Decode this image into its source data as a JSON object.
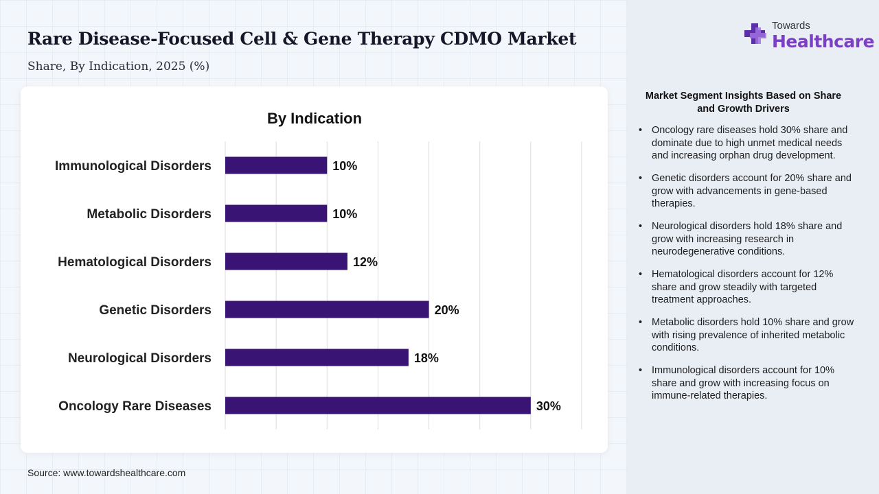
{
  "header": {
    "title": "Rare Disease-Focused Cell & Gene Therapy CDMO Market",
    "subtitle": "Share, By Indication, 2025 (%)"
  },
  "source": "Source: www.towardshealthcare.com",
  "logo": {
    "small": "Towards",
    "big": "Healthcare",
    "icon": "medical-cross-icon",
    "colors": {
      "accent": "#7b3fc4",
      "cross_dark": "#5b2fa8",
      "cross_light": "#a070e0"
    }
  },
  "insights": {
    "title": "Market Segment Insights Based on Share and Growth Drivers",
    "bullet": "•",
    "items": [
      "Oncology rare diseases hold 30% share and dominate due to high unmet medical needs and increasing orphan drug development.",
      "Genetic disorders account for 20% share and grow with advancements in gene-based therapies.",
      "Neurological disorders hold 18% share and grow with increasing research in neurodegenerative conditions.",
      "Hematological disorders account for 12% share and grow steadily with targeted treatment approaches.",
      "Metabolic disorders hold 10% share and grow with rising prevalence of inherited metabolic conditions.",
      "Immunological disorders account for 10% share and grow with increasing focus on immune-related therapies."
    ]
  },
  "chart_data": {
    "type": "bar",
    "orientation": "horizontal",
    "title": "By Indication",
    "categories": [
      "Immunological Disorders",
      "Metabolic Disorders",
      "Hematological Disorders",
      "Genetic Disorders",
      "Neurological Disorders",
      "Oncology Rare Diseases"
    ],
    "values": [
      10,
      10,
      12,
      20,
      18,
      30
    ],
    "data_labels": [
      "10%",
      "10%",
      "12%",
      "20%",
      "18%",
      "30%"
    ],
    "unit": "%",
    "xlim": [
      0,
      35
    ],
    "grid": true,
    "color": "#3a1475"
  }
}
